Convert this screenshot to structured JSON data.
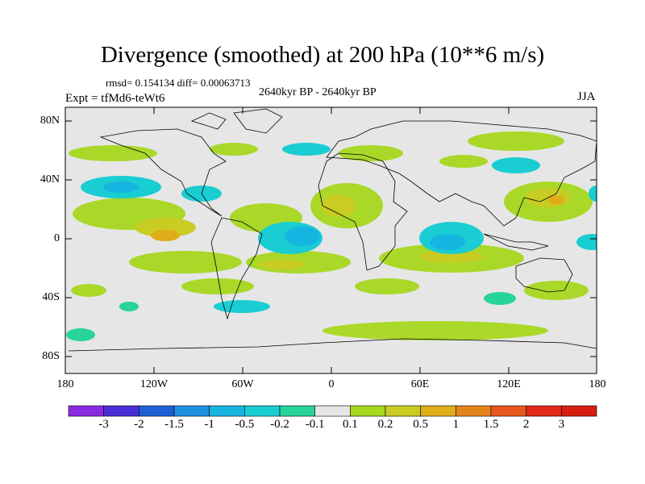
{
  "title": "Divergence (smoothed) at 200 hPa (10**6 m/s)",
  "stats": "rmsd= 0.154134 diff= 0.00063713",
  "period": "2640kyr BP - 2640kyr BP",
  "experiment": "Expt = tfMd6-teWt6",
  "season": "JJA",
  "lat_ticks": [
    "80N",
    "40N",
    "0",
    "40S",
    "80S"
  ],
  "lon_ticks": [
    "180",
    "120W",
    "60W",
    "0",
    "60E",
    "120E",
    "180"
  ],
  "colorbar": {
    "labels": [
      "-3",
      "-2",
      "-1.5",
      "-1",
      "-0.5",
      "-0.2",
      "-0.1",
      "0.1",
      "0.2",
      "0.5",
      "1",
      "1.5",
      "2",
      "3"
    ],
    "colors": [
      "#8a2be2",
      "#4b2fd6",
      "#1f5fd6",
      "#1e90e0",
      "#16b4e0",
      "#19cdd3",
      "#26d39a",
      "#e6e6e6",
      "#a6d81f",
      "#c9cc22",
      "#e0ac1a",
      "#e6841c",
      "#e8571c",
      "#e02a1a"
    ]
  },
  "colors": {
    "background_fill": "#e6e6e6",
    "coast": "#000000"
  }
}
